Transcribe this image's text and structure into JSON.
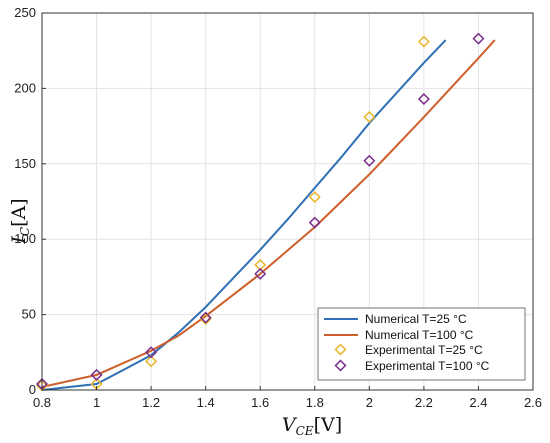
{
  "chart_data": {
    "type": "line",
    "title": "",
    "xlabel": "V_CE[V]",
    "ylabel": "I_C[A]",
    "xlim": [
      0.8,
      2.6
    ],
    "ylim": [
      0,
      250
    ],
    "xticks": [
      0.8,
      1,
      1.2,
      1.4,
      1.6,
      1.8,
      2,
      2.2,
      2.4,
      2.6
    ],
    "yticks": [
      0,
      50,
      100,
      150,
      200,
      250
    ],
    "xtick_labels": [
      "0.8",
      "1",
      "1.2",
      "1.4",
      "1.6",
      "1.8",
      "2",
      "2.2",
      "2.4",
      "2.6"
    ],
    "ytick_labels": [
      "0",
      "50",
      "100",
      "150",
      "200",
      "250"
    ],
    "grid": true,
    "legend_position": "bottom-right",
    "series": [
      {
        "name": "Numerical T=25 °C",
        "kind": "line",
        "color": "#2e6fb5",
        "x": [
          0.8,
          1.0,
          1.2,
          1.3,
          1.4,
          1.5,
          1.6,
          1.7,
          1.8,
          1.9,
          2.0,
          2.1,
          2.2,
          2.28
        ],
        "y": [
          0,
          4,
          23,
          38,
          55,
          74,
          93,
          113,
          134,
          155,
          177,
          197,
          217,
          232
        ]
      },
      {
        "name": "Numerical T=100 °C",
        "kind": "line",
        "color": "#cf5f2a",
        "x": [
          0.8,
          1.0,
          1.2,
          1.3,
          1.4,
          1.6,
          1.8,
          2.0,
          2.2,
          2.4,
          2.46
        ],
        "y": [
          2,
          10,
          26,
          36,
          49,
          77,
          108,
          143,
          181,
          220,
          232
        ]
      },
      {
        "name": "Experimental T=25 °C",
        "kind": "marker",
        "color": "#e8b62a",
        "x": [
          0.8,
          1.0,
          1.2,
          1.4,
          1.6,
          1.8,
          2.0,
          2.2
        ],
        "y": [
          3,
          4,
          19,
          47,
          83,
          128,
          181,
          231
        ]
      },
      {
        "name": "Experimental T=100 °C",
        "kind": "marker",
        "color": "#7a2f8e",
        "x": [
          0.8,
          1.0,
          1.2,
          1.4,
          1.6,
          1.8,
          2.0,
          2.2,
          2.4
        ],
        "y": [
          4,
          10,
          25,
          48,
          77,
          111,
          152,
          193,
          233
        ]
      }
    ]
  },
  "labels": {
    "ylabel_main": "I",
    "ylabel_sub": "C",
    "ylabel_unit": "[A]",
    "xlabel_main": "V",
    "xlabel_sub": "CE",
    "xlabel_unit": "[V]"
  }
}
